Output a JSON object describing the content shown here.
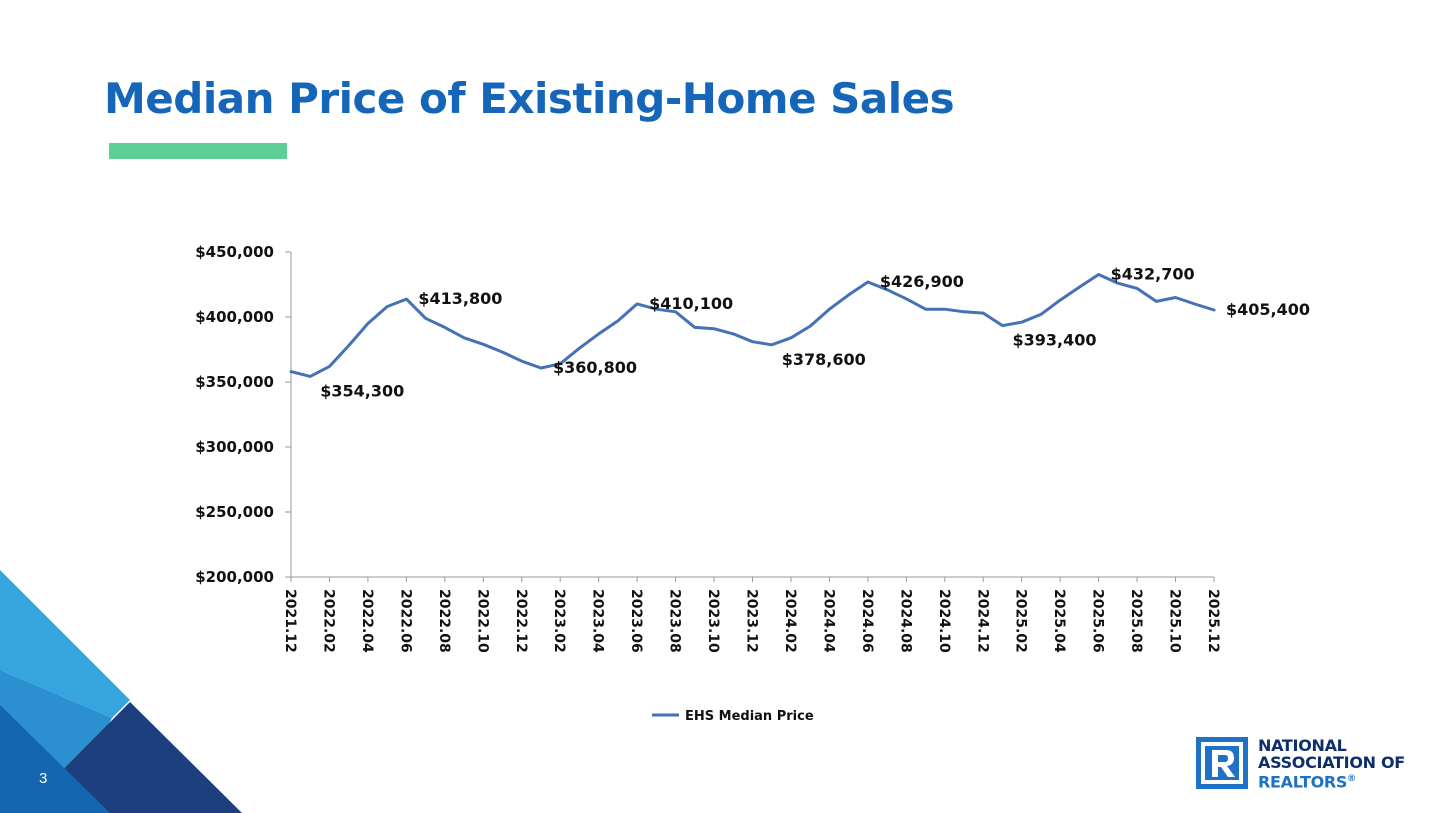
{
  "slide": {
    "title": "Median Price of Existing-Home Sales",
    "page_number": "3",
    "colors": {
      "title": "#1565b8",
      "accent_bar": "#5ccf97",
      "series_line": "#4472b4",
      "logo_navy": "#0f2f6b",
      "logo_blue": "#1e72c6"
    }
  },
  "logo": {
    "line1": "NATIONAL",
    "line2": "ASSOCIATION OF",
    "line3": "REALTORS",
    "mark": "®"
  },
  "chart_data": {
    "type": "line",
    "title": "",
    "xlabel": "",
    "ylabel": "",
    "ylim": [
      200000,
      450000
    ],
    "y_ticks": [
      200000,
      250000,
      300000,
      350000,
      400000,
      450000
    ],
    "y_tick_labels": [
      "$200,000",
      "$250,000",
      "$300,000",
      "$350,000",
      "$400,000",
      "$450,000"
    ],
    "x": [
      "2021.12",
      "2022.01",
      "2022.02",
      "2022.03",
      "2022.04",
      "2022.05",
      "2022.06",
      "2022.07",
      "2022.08",
      "2022.09",
      "2022.10",
      "2022.11",
      "2022.12",
      "2023.01",
      "2023.02",
      "2023.03",
      "2023.04",
      "2023.05",
      "2023.06",
      "2023.07",
      "2023.08",
      "2023.09",
      "2023.10",
      "2023.11",
      "2023.12",
      "2024.01",
      "2024.02",
      "2024.03",
      "2024.04",
      "2024.05",
      "2024.06",
      "2024.07",
      "2024.08",
      "2024.09",
      "2024.10",
      "2024.11",
      "2024.12",
      "2025.01",
      "2025.02",
      "2025.03",
      "2025.04",
      "2025.05",
      "2025.06",
      "2025.07",
      "2025.08",
      "2025.09",
      "2025.10",
      "2025.11",
      "2025.12"
    ],
    "x_tick_labels": [
      "2021.12",
      "2022.02",
      "2022.04",
      "2022.06",
      "2022.08",
      "2022.10",
      "2022.12",
      "2023.02",
      "2023.04",
      "2023.06",
      "2023.08",
      "2023.10",
      "2023.12",
      "2024.02",
      "2024.04",
      "2024.06",
      "2024.08",
      "2024.10",
      "2024.12",
      "2025.02",
      "2025.04",
      "2025.06",
      "2025.08",
      "2025.10",
      "2025.12"
    ],
    "series": [
      {
        "name": "EHS Median Price",
        "values": [
          358000,
          354300,
          362000,
          378000,
          395000,
          408000,
          413800,
          399000,
          392000,
          384000,
          379000,
          373000,
          366000,
          360800,
          364000,
          376000,
          387000,
          397000,
          410100,
          406000,
          404000,
          392000,
          391000,
          387000,
          381000,
          378600,
          384000,
          393000,
          406000,
          417000,
          426900,
          421000,
          414000,
          406000,
          406000,
          404000,
          403000,
          393400,
          396000,
          402000,
          413000,
          423000,
          432700,
          426000,
          422000,
          412000,
          415000,
          410000,
          405400
        ]
      }
    ],
    "data_labels": [
      {
        "index": 1,
        "text": "$354,300",
        "pos": "below-right"
      },
      {
        "index": 6,
        "text": "$413,800",
        "pos": "right"
      },
      {
        "index": 13,
        "text": "$360,800",
        "pos": "right"
      },
      {
        "index": 18,
        "text": "$410,100",
        "pos": "right"
      },
      {
        "index": 25,
        "text": "$378,600",
        "pos": "below-right"
      },
      {
        "index": 30,
        "text": "$426,900",
        "pos": "right"
      },
      {
        "index": 37,
        "text": "$393,400",
        "pos": "below-right"
      },
      {
        "index": 42,
        "text": "$432,700",
        "pos": "right"
      },
      {
        "index": 48,
        "text": "$405,400",
        "pos": "right"
      }
    ],
    "legend": {
      "entries": [
        "EHS Median Price"
      ],
      "position": "bottom"
    },
    "grid": false
  }
}
